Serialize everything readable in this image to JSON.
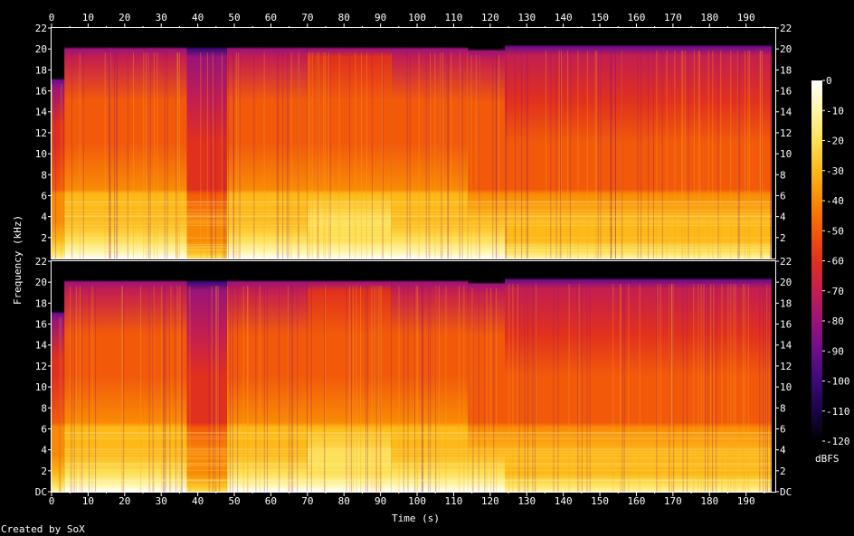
{
  "chart_data": {
    "type": "heatmap",
    "subtype": "spectrogram",
    "xlabel": "Time (s)",
    "ylabel": "Frequency (kHz)",
    "xlim": [
      0,
      198
    ],
    "ylim": [
      0,
      22
    ],
    "x_ticks": [
      "0",
      "10",
      "20",
      "30",
      "40",
      "50",
      "60",
      "70",
      "80",
      "90",
      "100",
      "110",
      "120",
      "130",
      "140",
      "150",
      "160",
      "170",
      "180",
      "190"
    ],
    "x_minor_ticks": [
      5,
      15,
      25,
      35,
      45,
      55,
      65,
      75,
      85,
      95,
      105,
      115,
      125,
      135,
      145,
      155,
      165,
      175,
      185,
      195
    ],
    "y_ticks": [
      "DC",
      "2",
      "4",
      "6",
      "8",
      "10",
      "12",
      "14",
      "16",
      "18",
      "20",
      "22"
    ],
    "channels": 2,
    "colorbar": {
      "label": "dBFS",
      "ticks": [
        "0",
        "-10",
        "-20",
        "-30",
        "-40",
        "-50",
        "-60",
        "-70",
        "-80",
        "-90",
        "-100",
        "-110",
        "-120"
      ],
      "range": [
        -120,
        0
      ],
      "colors": [
        "#000000",
        "#1a0548",
        "#3c0a78",
        "#6c0e8a",
        "#9a1478",
        "#c41e50",
        "#e0301e",
        "#f25a0a",
        "#f98a06",
        "#fcb918",
        "#fde058",
        "#fff5a8",
        "#ffffff"
      ]
    },
    "segments": [
      {
        "t0": 0,
        "t1": 3.5,
        "cutoff_khz": 17.0,
        "level": -62
      },
      {
        "t0": 3.5,
        "t1": 37,
        "cutoff_khz": 20.0,
        "level": -52
      },
      {
        "t0": 37,
        "t1": 48,
        "cutoff_khz": 20.0,
        "level": -68
      },
      {
        "t0": 48,
        "t1": 70,
        "cutoff_khz": 20.0,
        "level": -52
      },
      {
        "t0": 70,
        "t1": 93,
        "cutoff_khz": 20.0,
        "level": -50
      },
      {
        "t0": 93,
        "t1": 114,
        "cutoff_khz": 20.0,
        "level": -52
      },
      {
        "t0": 114,
        "t1": 124,
        "cutoff_khz": 19.8,
        "level": -54
      },
      {
        "t0": 124,
        "t1": 197,
        "cutoff_khz": 20.2,
        "level": -58
      }
    ],
    "footer": "Created by SoX"
  }
}
